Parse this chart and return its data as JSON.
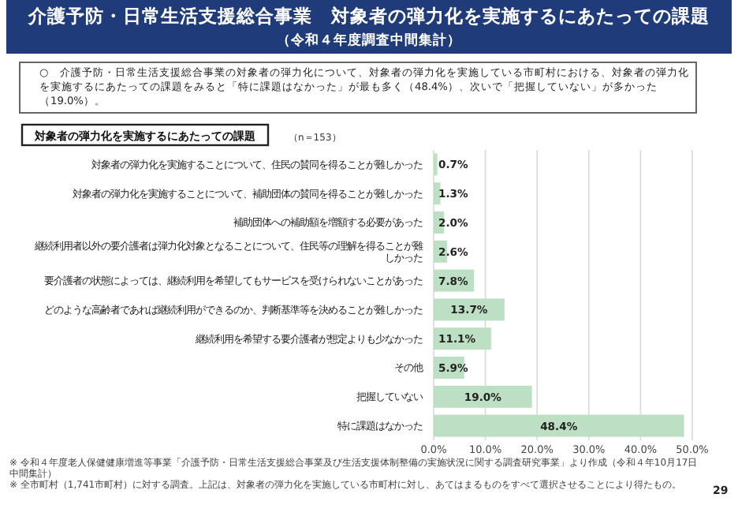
{
  "chart_data": {
    "type": "bar",
    "orientation": "horizontal",
    "title": "介護予防・日常生活支援総合事業　対象者の弾力化を実施するにあたっての課題",
    "subtitle": "（令和４年度調査中間集計）",
    "annotations": [
      "○　介護予防・日常生活支援総合事業の対象者の弾力化について、対象者の弾力化を実施している市町村における、対象者の弾力化を実施するにあたっての課題をみると「特に課題はなかった」が最も多く（48.4%）、次いで「把握していない」が多かった（19.0%）。",
      "対象者の弾力化を実施するにあたっての課題",
      "（n＝153）",
      "※ 令和４年度老人保健健康増進等事業「介護予防・日常生活支援総合事業及び生活支援体制整備の実施状況に関する調査研究事業」より作成（令和４年10月17日中間集計）",
      "※ 全市町村（1,741市町村）に対する調査。上記は、対象者の弾力化を実施している市町村に対し、あてはまるものをすべて選択させることにより得たもの。",
      "29"
    ],
    "categories": [
      "対象者の弾力化を実施することについて、住民の賛同を得ることが難しかった",
      "対象者の弾力化を実施することについて、補助団体の賛同を得ることが難しかった",
      "補助団体への補助額を増額する必要があった",
      "継続利用者以外の要介護者は弾力化対象となることについて、住民等の理解を得ることが難しかった",
      "要介護者の状態によっては、継続利用を希望してもサービスを受けられないことがあった",
      "どのような高齢者であれば継続利用ができるのか、判断基準等を決めることが難しかった",
      "継続利用を希望する要介護者が想定よりも少なかった",
      "その他",
      "把握していない",
      "特に課題はなかった"
    ],
    "values": [
      0.7,
      1.3,
      2.0,
      2.6,
      7.8,
      13.7,
      11.1,
      5.9,
      19.0,
      48.4
    ],
    "value_labels": [
      "0.7%",
      "1.3%",
      "2.0%",
      "2.6%",
      "7.8%",
      "13.7%",
      "11.1%",
      "5.9%",
      "19.0%",
      "48.4%"
    ],
    "color": "#bde0c4",
    "xlim": [
      0,
      50
    ],
    "xticks": [
      {
        "value": 0,
        "label": "0.0%"
      },
      {
        "value": 10,
        "label": "10.0%"
      },
      {
        "value": 20,
        "label": "20.0%"
      },
      {
        "value": 30,
        "label": "30.0%"
      },
      {
        "value": 40,
        "label": "40.0%"
      },
      {
        "value": 50,
        "label": "50.0%"
      }
    ],
    "grid": "x"
  }
}
